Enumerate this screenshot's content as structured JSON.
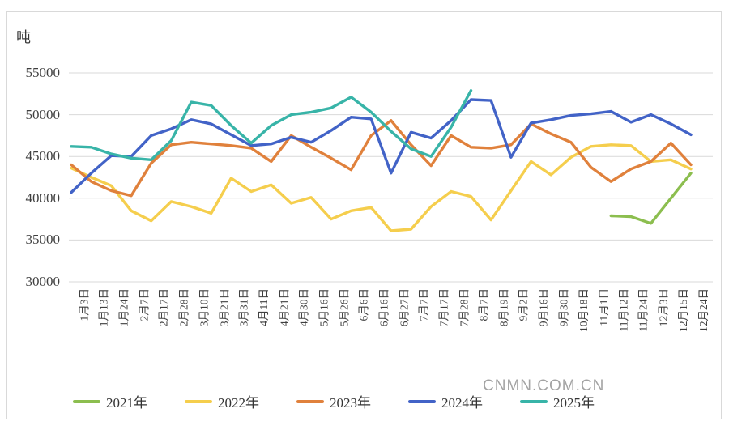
{
  "page": {
    "watermark": "CNMN.COM.CN",
    "unit_label": "吨"
  },
  "chart_data": {
    "type": "line",
    "title": "",
    "xlabel": "",
    "ylabel": "吨",
    "ylim": [
      30000,
      55000
    ],
    "y_ticks": [
      30000,
      35000,
      40000,
      45000,
      50000,
      55000
    ],
    "grid": "horizontal",
    "legend_position": "bottom",
    "categories": [
      "1月3日",
      "1月13日",
      "1月24日",
      "2月7日",
      "2月17日",
      "2月28日",
      "3月10日",
      "3月21日",
      "3月31日",
      "4月11日",
      "4月21日",
      "4月30日",
      "5月16日",
      "5月26日",
      "6月6日",
      "6月16日",
      "6月27日",
      "7月7日",
      "7月17日",
      "7月28日",
      "8月7日",
      "8月19日",
      "9月2日",
      "9月16日",
      "9月30日",
      "10月18日",
      "11月1日",
      "11月12日",
      "11月24日",
      "12月3日",
      "12月15日",
      "12月24日"
    ],
    "series": [
      {
        "name": "2021年",
        "color": "#8cbe4f",
        "values": [
          null,
          null,
          null,
          null,
          null,
          null,
          null,
          null,
          null,
          null,
          null,
          null,
          null,
          null,
          null,
          null,
          null,
          null,
          null,
          null,
          null,
          null,
          null,
          null,
          null,
          null,
          null,
          37900,
          37800,
          37000,
          40000,
          43000
        ]
      },
      {
        "name": "2022年",
        "color": "#f5ce4d",
        "values": [
          43600,
          42500,
          41500,
          38500,
          37300,
          39600,
          39000,
          38200,
          42400,
          40800,
          41600,
          39400,
          40100,
          37500,
          38500,
          38900,
          36100,
          36300,
          39000,
          40800,
          40200,
          37400,
          40900,
          44400,
          42800,
          44900,
          46200,
          46400,
          46300,
          44400,
          44600,
          43500
        ]
      },
      {
        "name": "2023年",
        "color": "#e0813c",
        "values": [
          44000,
          42000,
          40900,
          40300,
          44200,
          46400,
          46700,
          46500,
          46300,
          46000,
          44400,
          47500,
          46100,
          44800,
          43400,
          47500,
          49300,
          46400,
          43900,
          47500,
          46100,
          46000,
          46400,
          48900,
          47700,
          46700,
          43700,
          42000,
          43500,
          44400,
          46600,
          44000
        ]
      },
      {
        "name": "2024年",
        "color": "#4263c7",
        "values": [
          40700,
          43000,
          45100,
          45000,
          47500,
          48300,
          49400,
          48900,
          47600,
          46300,
          46500,
          47300,
          46700,
          48100,
          49700,
          49500,
          43000,
          47900,
          47200,
          49300,
          51800,
          51700,
          44900,
          49000,
          49400,
          49900,
          50100,
          50400,
          49100,
          50000,
          48900,
          47600
        ]
      },
      {
        "name": "2025年",
        "color": "#38b4a8",
        "values": [
          46200,
          46100,
          45300,
          44800,
          44600,
          46900,
          51500,
          51100,
          48700,
          46600,
          48700,
          50000,
          50300,
          50800,
          52100,
          50300,
          48000,
          45900,
          45000,
          48500,
          52900,
          null,
          null,
          null,
          null,
          null,
          null,
          null,
          null,
          null,
          null,
          null
        ]
      }
    ]
  }
}
